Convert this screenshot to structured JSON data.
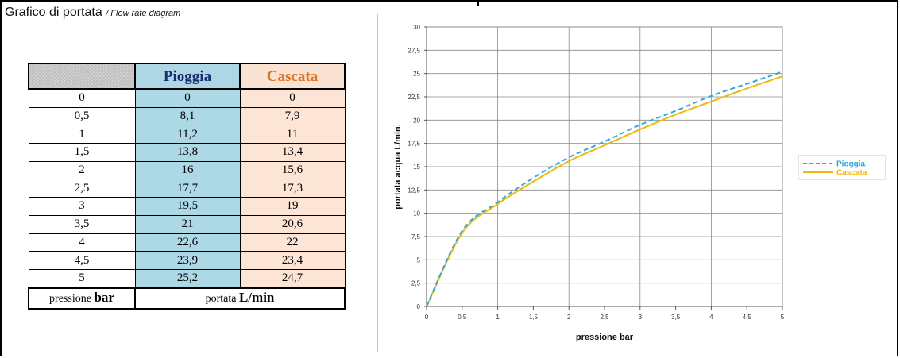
{
  "heading": {
    "title": "Grafico di portata",
    "subtitle": "/ Flow rate diagram"
  },
  "table": {
    "headers": [
      "Pioggia",
      "Cascata"
    ],
    "rows": [
      {
        "pressure": "0",
        "pioggia": "0",
        "cascata": "0"
      },
      {
        "pressure": "0,5",
        "pioggia": "8,1",
        "cascata": "7,9"
      },
      {
        "pressure": "1",
        "pioggia": "11,2",
        "cascata": "11"
      },
      {
        "pressure": "1,5",
        "pioggia": "13,8",
        "cascata": "13,4"
      },
      {
        "pressure": "2",
        "pioggia": "16",
        "cascata": "15,6"
      },
      {
        "pressure": "2,5",
        "pioggia": "17,7",
        "cascata": "17,3"
      },
      {
        "pressure": "3",
        "pioggia": "19,5",
        "cascata": "19"
      },
      {
        "pressure": "3,5",
        "pioggia": "21",
        "cascata": "20,6"
      },
      {
        "pressure": "4",
        "pioggia": "22,6",
        "cascata": "22"
      },
      {
        "pressure": "4,5",
        "pioggia": "23,9",
        "cascata": "23,4"
      },
      {
        "pressure": "5",
        "pioggia": "25,2",
        "cascata": "24,7"
      }
    ],
    "footer": {
      "pressure_label": "pressione",
      "pressure_unit": "bar",
      "flow_label": "portata",
      "flow_unit": "L/min"
    }
  },
  "colors": {
    "pioggia": "#29a9e0",
    "cascata": "#f5b50a",
    "pioggia_header_text": "#1a2f6e",
    "cascata_header_text": "#e0721f"
  },
  "chart_data": {
    "type": "line",
    "xlabel": "pressione bar",
    "ylabel": "portata acqua  L/min.",
    "xlim": [
      0,
      5
    ],
    "ylim": [
      0,
      30
    ],
    "x_ticks": [
      "0",
      "0,5",
      "1",
      "1,5",
      "2",
      "2,5",
      "3",
      "3,5",
      "4",
      "4,5",
      "5"
    ],
    "y_ticks": [
      "0",
      "2,5",
      "5",
      "7,5",
      "10",
      "12,5",
      "15",
      "17,5",
      "20",
      "22,5",
      "25",
      "27,5",
      "30"
    ],
    "grid": true,
    "legend": "right",
    "x": [
      0,
      0.5,
      1,
      1.5,
      2,
      2.5,
      3,
      3.5,
      4,
      4.5,
      5
    ],
    "series": [
      {
        "name": "Pioggia",
        "style": "dashed",
        "values": [
          0,
          8.1,
          11.2,
          13.8,
          16,
          17.7,
          19.5,
          21,
          22.6,
          23.9,
          25.2
        ]
      },
      {
        "name": "Cascata",
        "style": "solid",
        "values": [
          0,
          7.9,
          11,
          13.4,
          15.6,
          17.3,
          19,
          20.6,
          22,
          23.4,
          24.7
        ]
      }
    ]
  }
}
